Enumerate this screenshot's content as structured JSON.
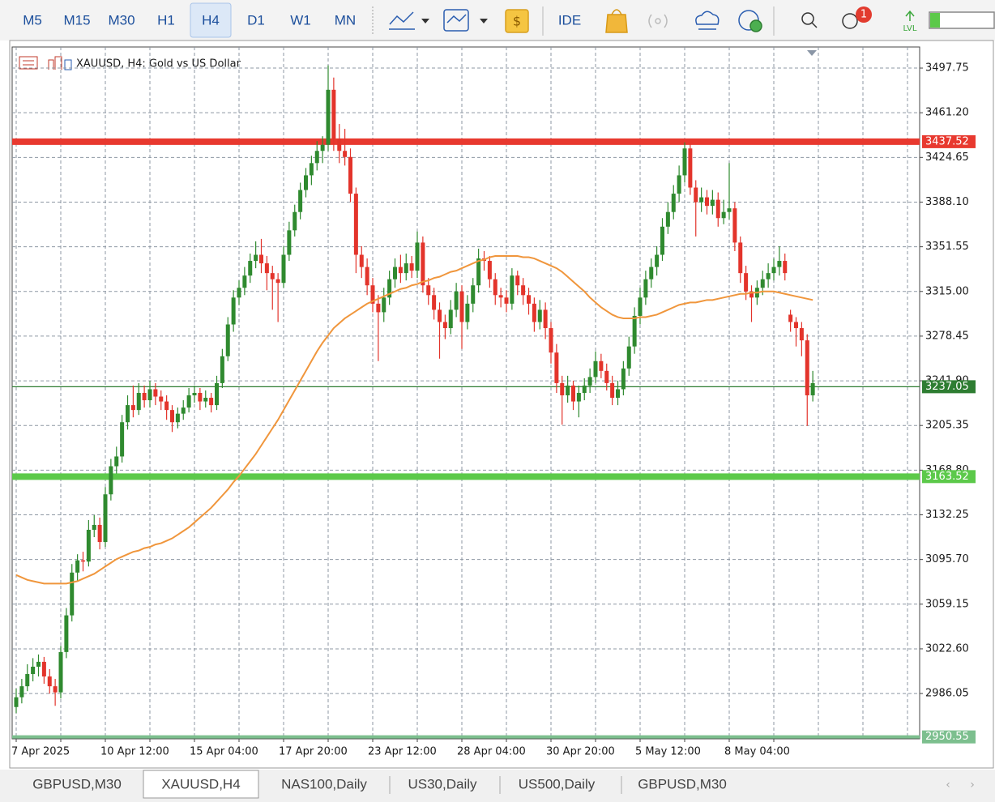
{
  "toolbar": {
    "timeframes": [
      "M5",
      "M15",
      "M30",
      "H1",
      "H4",
      "D1",
      "W1",
      "MN"
    ],
    "active_timeframe": 4,
    "ide": "IDE",
    "badge": "1",
    "lvl": "LVL"
  },
  "tabs": [
    "GBPUSD,M30",
    "XAUUSD,H4",
    "NAS100,Daily",
    "US30,Daily",
    "US500,Daily",
    "GBPUSD,M30"
  ],
  "active_tab": 1,
  "chart_data": {
    "type": "candlestick",
    "title": "XAUUSD, H4:  Gold vs US Dollar",
    "up_color": "#2f8a2f",
    "down_color": "#e3342b",
    "grid": true,
    "ylim": [
      2949,
      3515
    ],
    "yticks": [
      {
        "value": 2986.05,
        "label": "2986.05"
      },
      {
        "value": 3022.6,
        "label": "3022.60"
      },
      3059.15,
      {
        "value": 3095.7,
        "label": "3095.70"
      },
      3132.25,
      {
        "value": 3168.8,
        "label": "3168.80"
      },
      3205.35,
      {
        "value": 3241.9,
        "label": "3241.90"
      },
      3278.45,
      {
        "value": 3315,
        "label": "3315.00"
      },
      3351.55,
      {
        "value": 3388.1,
        "label": "3388.10"
      },
      3424.65,
      {
        "value": 3461.2,
        "label": "3461.20"
      },
      3497.75
    ],
    "price_lines": [
      {
        "value": 3437.52,
        "color": "#e8392f",
        "style": "thick"
      },
      {
        "value": 3163.52,
        "color": "#5cc94a",
        "style": "thick"
      },
      {
        "value": 3237.05,
        "color": "#2e7d32",
        "style": "thin"
      },
      {
        "value": 2950.55,
        "color": "#7cbf8e",
        "style": "medium"
      }
    ],
    "categories": [
      "7 Apr 2025",
      null,
      null,
      null,
      null,
      null,
      null,
      null,
      null,
      null,
      null,
      null,
      null,
      null,
      null,
      null,
      "10 Apr 12:00",
      null,
      null,
      null,
      null,
      null,
      null,
      null,
      null,
      null,
      null,
      null,
      null,
      null,
      null,
      null,
      "15 Apr 04:00",
      null,
      null,
      null,
      null,
      null,
      null,
      null,
      null,
      null,
      null,
      null,
      null,
      null,
      null,
      null,
      "17 Apr 20:00",
      null,
      null,
      null,
      null,
      null,
      null,
      null,
      null,
      null,
      null,
      null,
      null,
      null,
      null,
      null,
      "23 Apr 12:00",
      null,
      null,
      null,
      null,
      null,
      null,
      null,
      null,
      null,
      null,
      null,
      null,
      null,
      null,
      null,
      "28 Apr 04:00",
      null,
      null,
      null,
      null,
      null,
      null,
      null,
      null,
      null,
      null,
      null,
      null,
      null,
      null,
      null,
      "30 Apr 20:00",
      null,
      null,
      null,
      null,
      null,
      null,
      null,
      null,
      null,
      null,
      null,
      null,
      null,
      null,
      null,
      "5 May 12:00",
      null,
      null,
      null,
      null,
      null,
      null,
      null,
      null,
      null,
      null,
      null,
      null,
      null,
      null,
      null,
      "8 May 04:00",
      null,
      null,
      null,
      null,
      null,
      null,
      null,
      null,
      null,
      null,
      null,
      null,
      null,
      null,
      null
    ],
    "open": [
      2975,
      2983,
      2992,
      3002,
      3008,
      3012,
      3000,
      2992,
      2987,
      3020,
      3050,
      3085,
      3095,
      3094,
      3120,
      3124,
      3110,
      3149,
      3172,
      3180,
      3208,
      3222,
      3218,
      3232,
      3226,
      3235,
      3229,
      3225,
      3218,
      3208,
      3215,
      3220,
      3230,
      3232,
      3225,
      3228,
      3222,
      3240,
      3262,
      3288,
      3310,
      3318,
      3328,
      3340,
      3345,
      3338,
      3330,
      3325,
      3322,
      3345,
      3365,
      3380,
      3398,
      3410,
      3420,
      3430,
      3435,
      3480,
      3440,
      3430,
      3425,
      3395,
      3345,
      3335,
      3320,
      3305,
      3298,
      3310,
      3325,
      3335,
      3330,
      3338,
      3332,
      3355,
      3320,
      3312,
      3300,
      3290,
      3285,
      3300,
      3315,
      3290,
      3305,
      3320,
      3342,
      3340,
      3325,
      3312,
      3310,
      3305,
      3328,
      3320,
      3312,
      3305,
      3290,
      3300,
      3285,
      3265,
      3240,
      3230,
      3238,
      3225,
      3232,
      3238,
      3245,
      3258,
      3250,
      3240,
      3228,
      3235,
      3252,
      3270,
      3295,
      3310,
      3325,
      3335,
      3345,
      3368,
      3380,
      3395,
      3410,
      3432,
      3400,
      3388,
      3392,
      3385,
      3390,
      3375,
      3380,
      3383,
      3355,
      3330,
      3315,
      3310,
      3318,
      3325,
      3330,
      3335,
      3340,
      3296,
      3290,
      3285,
      3275,
      3230
    ],
    "high": [
      2990,
      2998,
      3010,
      3015,
      3018,
      3016,
      3006,
      2998,
      3025,
      3056,
      3092,
      3100,
      3102,
      3128,
      3132,
      3130,
      3155,
      3178,
      3188,
      3214,
      3230,
      3238,
      3240,
      3238,
      3242,
      3240,
      3234,
      3230,
      3222,
      3220,
      3226,
      3236,
      3238,
      3236,
      3234,
      3232,
      3246,
      3268,
      3294,
      3316,
      3324,
      3335,
      3346,
      3356,
      3358,
      3344,
      3336,
      3330,
      3352,
      3372,
      3386,
      3404,
      3416,
      3426,
      3438,
      3442,
      3500,
      3490,
      3452,
      3448,
      3432,
      3400,
      3352,
      3342,
      3326,
      3312,
      3318,
      3332,
      3342,
      3345,
      3346,
      3344,
      3364,
      3360,
      3326,
      3318,
      3306,
      3296,
      3308,
      3322,
      3320,
      3312,
      3326,
      3350,
      3348,
      3344,
      3330,
      3318,
      3316,
      3334,
      3332,
      3326,
      3318,
      3310,
      3308,
      3306,
      3290,
      3272,
      3246,
      3246,
      3242,
      3238,
      3244,
      3252,
      3266,
      3264,
      3256,
      3246,
      3242,
      3258,
      3278,
      3302,
      3318,
      3332,
      3342,
      3352,
      3375,
      3388,
      3402,
      3418,
      3437,
      3436,
      3406,
      3400,
      3398,
      3398,
      3396,
      3390,
      3420,
      3388,
      3360,
      3336,
      3320,
      3324,
      3332,
      3338,
      3342,
      3352,
      3346,
      3300,
      3294,
      3290,
      3280,
      3250
    ],
    "low": [
      2970,
      2978,
      2988,
      2996,
      3000,
      2994,
      2986,
      2976,
      2982,
      3015,
      3045,
      3078,
      3086,
      3090,
      3114,
      3104,
      3106,
      3144,
      3166,
      3175,
      3202,
      3212,
      3214,
      3220,
      3220,
      3222,
      3218,
      3210,
      3200,
      3203,
      3210,
      3216,
      3224,
      3218,
      3220,
      3216,
      3218,
      3236,
      3258,
      3282,
      3304,
      3312,
      3322,
      3334,
      3330,
      3316,
      3300,
      3290,
      3318,
      3340,
      3360,
      3374,
      3392,
      3402,
      3414,
      3420,
      3430,
      3430,
      3420,
      3418,
      3388,
      3330,
      3326,
      3312,
      3298,
      3258,
      3290,
      3304,
      3318,
      3322,
      3324,
      3326,
      3326,
      3314,
      3304,
      3292,
      3260,
      3276,
      3280,
      3294,
      3268,
      3284,
      3298,
      3314,
      3332,
      3318,
      3304,
      3302,
      3298,
      3300,
      3312,
      3304,
      3296,
      3282,
      3284,
      3276,
      3256,
      3232,
      3206,
      3224,
      3218,
      3212,
      3226,
      3232,
      3240,
      3244,
      3234,
      3222,
      3222,
      3230,
      3246,
      3264,
      3288,
      3304,
      3318,
      3328,
      3340,
      3362,
      3374,
      3388,
      3404,
      3394,
      3360,
      3380,
      3378,
      3378,
      3368,
      3370,
      3374,
      3348,
      3322,
      3308,
      3290,
      3304,
      3312,
      3318,
      3324,
      3328,
      3324,
      3282,
      3270,
      3262,
      3205,
      3225
    ],
    "close": [
      2983,
      2992,
      3002,
      3008,
      3012,
      3000,
      2992,
      2987,
      3020,
      3050,
      3085,
      3095,
      3094,
      3120,
      3124,
      3110,
      3149,
      3172,
      3180,
      3208,
      3222,
      3218,
      3232,
      3226,
      3235,
      3229,
      3225,
      3218,
      3208,
      3215,
      3220,
      3230,
      3232,
      3225,
      3228,
      3222,
      3240,
      3262,
      3288,
      3310,
      3318,
      3328,
      3340,
      3345,
      3338,
      3330,
      3325,
      3322,
      3345,
      3365,
      3380,
      3398,
      3410,
      3420,
      3430,
      3435,
      3480,
      3440,
      3430,
      3425,
      3395,
      3345,
      3335,
      3320,
      3305,
      3298,
      3310,
      3325,
      3335,
      3330,
      3338,
      3332,
      3355,
      3320,
      3312,
      3300,
      3290,
      3285,
      3300,
      3315,
      3290,
      3305,
      3320,
      3342,
      3340,
      3325,
      3312,
      3310,
      3305,
      3328,
      3320,
      3312,
      3305,
      3290,
      3300,
      3285,
      3265,
      3240,
      3230,
      3238,
      3225,
      3232,
      3238,
      3245,
      3258,
      3250,
      3240,
      3228,
      3235,
      3252,
      3270,
      3295,
      3310,
      3325,
      3335,
      3345,
      3368,
      3380,
      3395,
      3410,
      3432,
      3400,
      3388,
      3392,
      3385,
      3390,
      3375,
      3380,
      3383,
      3355,
      3330,
      3315,
      3310,
      3318,
      3325,
      3330,
      3335,
      3340,
      3330,
      3290,
      3285,
      3275,
      3230,
      3240
    ],
    "ma": {
      "color": "#f0963c",
      "values": [
        3083,
        3081,
        3079,
        3078,
        3077,
        3076,
        3076,
        3076,
        3076,
        3076,
        3077,
        3078,
        3080,
        3082,
        3084,
        3087,
        3090,
        3093,
        3096,
        3098,
        3100,
        3102,
        3103,
        3105,
        3106,
        3108,
        3109,
        3111,
        3113,
        3116,
        3119,
        3122,
        3126,
        3130,
        3134,
        3138,
        3143,
        3148,
        3153,
        3159,
        3164,
        3170,
        3176,
        3182,
        3189,
        3196,
        3203,
        3210,
        3218,
        3226,
        3234,
        3242,
        3250,
        3258,
        3266,
        3273,
        3279,
        3285,
        3289,
        3293,
        3296,
        3299,
        3302,
        3305,
        3307,
        3309,
        3311,
        3313,
        3315,
        3317,
        3318,
        3320,
        3321,
        3323,
        3324,
        3326,
        3327,
        3329,
        3331,
        3332,
        3334,
        3336,
        3338,
        3340,
        3341,
        3343,
        3344,
        3344,
        3344,
        3344,
        3344,
        3343,
        3343,
        3342,
        3340,
        3338,
        3336,
        3334,
        3331,
        3327,
        3323,
        3319,
        3315,
        3310,
        3306,
        3302,
        3299,
        3296,
        3294,
        3293,
        3293,
        3293,
        3294,
        3294,
        3295,
        3296,
        3298,
        3300,
        3302,
        3304,
        3305,
        3306,
        3306,
        3307,
        3308,
        3308,
        3309,
        3310,
        3311,
        3312,
        3313,
        3313,
        3314,
        3314,
        3315,
        3315,
        3315,
        3314,
        3313,
        3312,
        3311,
        3310,
        3309,
        3308
      ]
    }
  }
}
